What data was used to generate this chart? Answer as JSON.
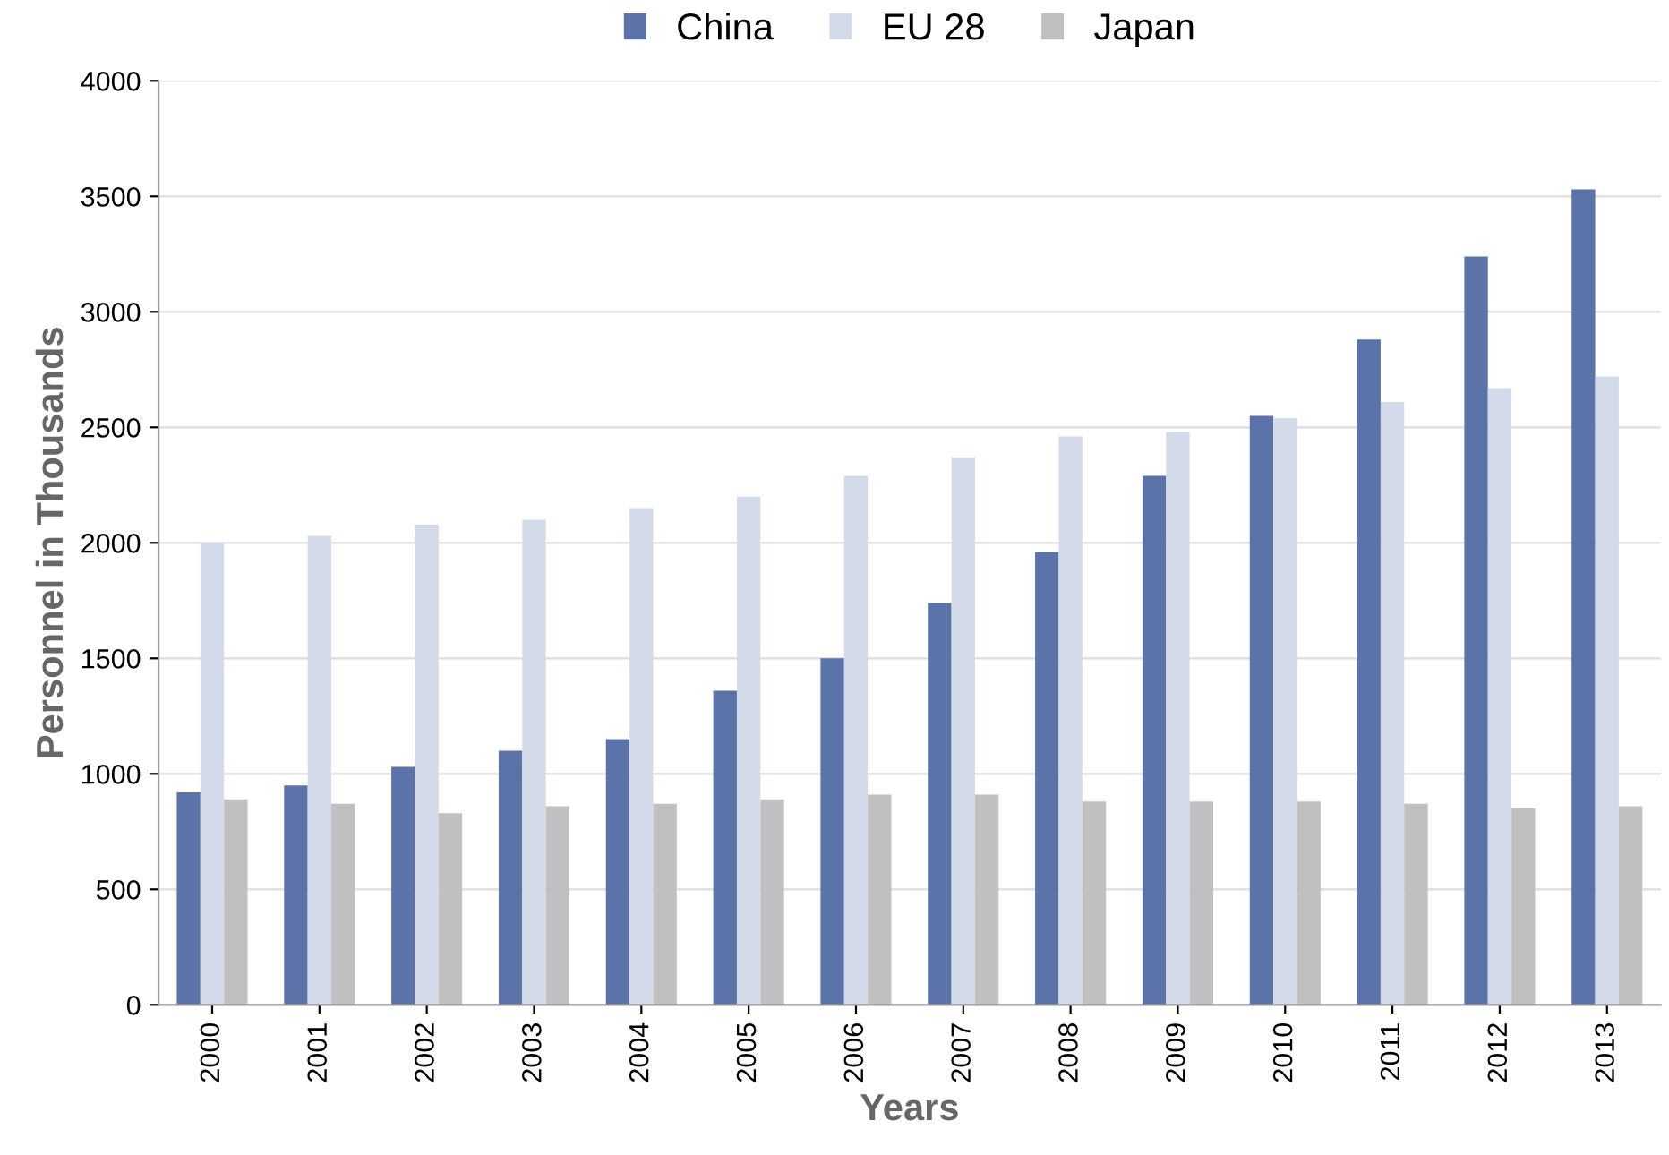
{
  "chart_data": {
    "type": "bar",
    "xlabel": "Years",
    "ylabel": "Personnel in Thousands",
    "categories": [
      "2000",
      "2001",
      "2002",
      "2003",
      "2004",
      "2005",
      "2006",
      "2007",
      "2008",
      "2009",
      "2010",
      "2011",
      "2012",
      "2013"
    ],
    "series": [
      {
        "name": "China",
        "color": "#5b73a8",
        "values": [
          920,
          950,
          1030,
          1100,
          1150,
          1360,
          1500,
          1740,
          1960,
          2290,
          2550,
          2880,
          3240,
          3530
        ]
      },
      {
        "name": "EU 28",
        "color": "#d3dbea",
        "values": [
          2000,
          2030,
          2080,
          2100,
          2150,
          2200,
          2290,
          2370,
          2460,
          2480,
          2540,
          2610,
          2670,
          2720
        ]
      },
      {
        "name": "Japan",
        "color": "#c0c0c0",
        "values": [
          890,
          870,
          830,
          860,
          870,
          890,
          910,
          910,
          880,
          880,
          880,
          870,
          850,
          860
        ]
      }
    ],
    "ylim": [
      0,
      4000
    ],
    "yticks": [
      0,
      500,
      1000,
      1500,
      2000,
      2500,
      3000,
      3500,
      4000
    ],
    "grid": "y",
    "legend": "top"
  }
}
